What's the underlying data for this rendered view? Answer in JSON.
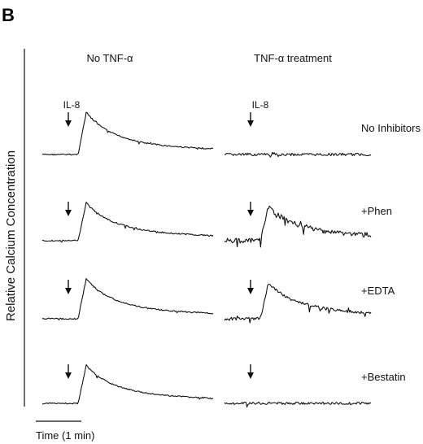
{
  "panel_label": "B",
  "chart_data": {
    "type": "line",
    "ylabel": "Relative Calcium Concentration",
    "scale_bar_label": "Time (1 min)",
    "stimulus_label": "IL-8",
    "columns": [
      {
        "key": "no_tnf",
        "title": "No TNF-α"
      },
      {
        "key": "tnf",
        "title": "TNF-α treatment"
      }
    ],
    "rows": [
      {
        "label": "No Inhibitors",
        "no_tnf": {
          "response": 1.0,
          "noise": "low"
        },
        "tnf": {
          "response": 0.0,
          "noise": "flat"
        }
      },
      {
        "label": "+Phen",
        "no_tnf": {
          "response": 0.9,
          "noise": "low"
        },
        "tnf": {
          "response": 0.8,
          "noise": "high"
        }
      },
      {
        "label": "+EDTA",
        "no_tnf": {
          "response": 0.95,
          "noise": "low"
        },
        "tnf": {
          "response": 0.85,
          "noise": "medium"
        }
      },
      {
        "label": "+Bestatin",
        "no_tnf": {
          "response": 0.9,
          "noise": "low"
        },
        "tnf": {
          "response": 0.0,
          "noise": "flat"
        }
      }
    ]
  }
}
